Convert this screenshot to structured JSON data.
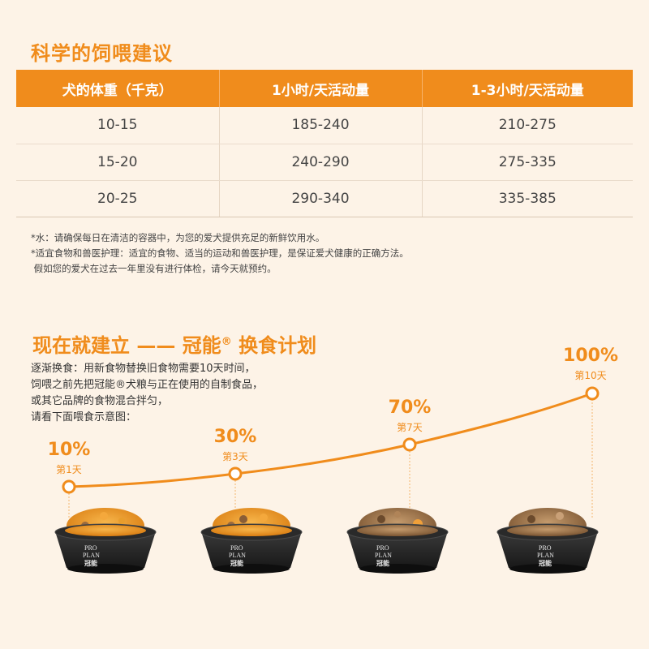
{
  "section1": {
    "title": "科学的饲喂建议",
    "headers": [
      "犬的体重（千克）",
      "1小时/天活动量",
      "1-3小时/天活动量"
    ],
    "rows": [
      [
        "10-15",
        "185-240",
        "210-275"
      ],
      [
        "15-20",
        "240-290",
        "275-335"
      ],
      [
        "20-25",
        "290-340",
        "335-385"
      ]
    ],
    "notes": [
      "*水：请确保每日在清洁的容器中，为您的爱犬提供充足的新鲜饮用水。",
      "*适宜食物和兽医护理：适宜的食物、适当的运动和兽医护理，是保证爱犬健康的正确方法。",
      " 假如您的爱犬在过去一年里没有进行体检，请今天就预约。"
    ]
  },
  "section2": {
    "title_main": "现在就建立 —— 冠能",
    "title_mark": "®",
    "title_end": " 换食计划",
    "intro": [
      "逐渐换食：用新食物替换旧食物需要10天时间，",
      "饲喂之前先把冠能®犬粮与正在使用的自制食品，",
      "或其它品牌的食物混合拌匀，",
      "请看下面喂食示意图："
    ],
    "steps": [
      {
        "percent": "10%",
        "day": "第1天"
      },
      {
        "percent": "30%",
        "day": "第3天"
      },
      {
        "percent": "70%",
        "day": "第7天"
      },
      {
        "percent": "100%",
        "day": "第10天"
      }
    ],
    "bowl_brand": [
      "PRO",
      "PLAN",
      "冠能"
    ]
  },
  "colors": {
    "accent": "#f08c1c",
    "background": "#fdf3e7",
    "bowl": "#2b2b2b"
  }
}
